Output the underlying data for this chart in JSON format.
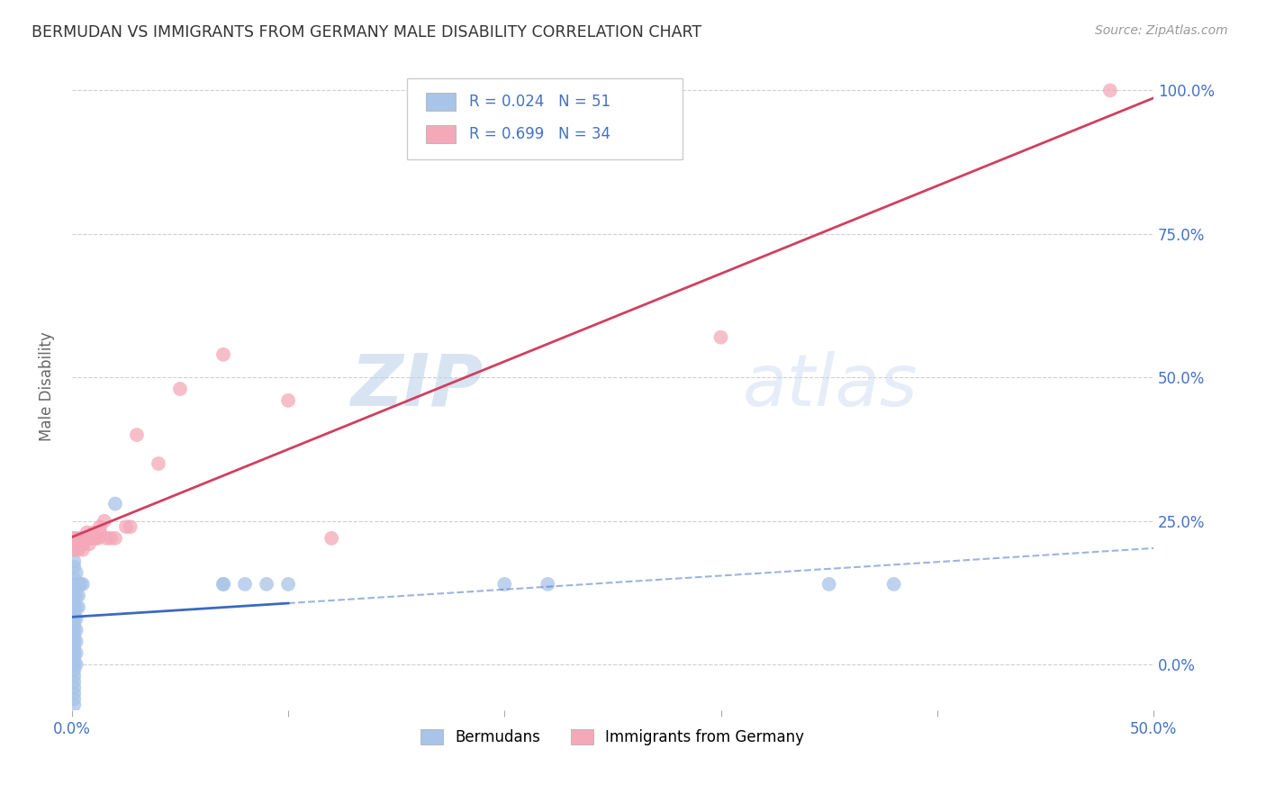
{
  "title": "BERMUDAN VS IMMIGRANTS FROM GERMANY MALE DISABILITY CORRELATION CHART",
  "source": "Source: ZipAtlas.com",
  "ylabel": "Male Disability",
  "watermark": "ZIPatlas",
  "blue_color": "#a8c4e8",
  "pink_color": "#f4a8b8",
  "blue_line_color": "#3a6abf",
  "pink_line_color": "#d04060",
  "blue_scatter": [
    [
      0.001,
      0.18
    ],
    [
      0.001,
      0.22
    ],
    [
      0.001,
      0.2
    ],
    [
      0.001,
      0.17
    ],
    [
      0.001,
      0.15
    ],
    [
      0.001,
      0.14
    ],
    [
      0.001,
      0.13
    ],
    [
      0.001,
      0.12
    ],
    [
      0.001,
      0.1
    ],
    [
      0.001,
      0.09
    ],
    [
      0.001,
      0.08
    ],
    [
      0.001,
      0.07
    ],
    [
      0.001,
      0.06
    ],
    [
      0.001,
      0.05
    ],
    [
      0.001,
      0.04
    ],
    [
      0.001,
      0.03
    ],
    [
      0.001,
      0.02
    ],
    [
      0.001,
      0.01
    ],
    [
      0.001,
      0.0
    ],
    [
      0.001,
      -0.01
    ],
    [
      0.001,
      -0.02
    ],
    [
      0.001,
      -0.03
    ],
    [
      0.001,
      -0.04
    ],
    [
      0.001,
      -0.05
    ],
    [
      0.001,
      -0.06
    ],
    [
      0.001,
      -0.07
    ],
    [
      0.002,
      0.16
    ],
    [
      0.002,
      0.14
    ],
    [
      0.002,
      0.12
    ],
    [
      0.002,
      0.1
    ],
    [
      0.002,
      0.08
    ],
    [
      0.002,
      0.06
    ],
    [
      0.002,
      0.04
    ],
    [
      0.002,
      0.02
    ],
    [
      0.002,
      0.0
    ],
    [
      0.003,
      0.14
    ],
    [
      0.003,
      0.12
    ],
    [
      0.003,
      0.1
    ],
    [
      0.003,
      0.14
    ],
    [
      0.004,
      0.14
    ],
    [
      0.005,
      0.14
    ],
    [
      0.02,
      0.28
    ],
    [
      0.07,
      0.14
    ],
    [
      0.07,
      0.14
    ],
    [
      0.08,
      0.14
    ],
    [
      0.09,
      0.14
    ],
    [
      0.1,
      0.14
    ],
    [
      0.2,
      0.14
    ],
    [
      0.22,
      0.14
    ],
    [
      0.35,
      0.14
    ],
    [
      0.38,
      0.14
    ]
  ],
  "pink_scatter": [
    [
      0.001,
      0.2
    ],
    [
      0.001,
      0.22
    ],
    [
      0.002,
      0.21
    ],
    [
      0.003,
      0.22
    ],
    [
      0.003,
      0.2
    ],
    [
      0.004,
      0.21
    ],
    [
      0.004,
      0.22
    ],
    [
      0.005,
      0.2
    ],
    [
      0.005,
      0.21
    ],
    [
      0.006,
      0.22
    ],
    [
      0.007,
      0.23
    ],
    [
      0.008,
      0.22
    ],
    [
      0.008,
      0.21
    ],
    [
      0.009,
      0.22
    ],
    [
      0.01,
      0.22
    ],
    [
      0.01,
      0.23
    ],
    [
      0.011,
      0.22
    ],
    [
      0.012,
      0.22
    ],
    [
      0.013,
      0.24
    ],
    [
      0.013,
      0.23
    ],
    [
      0.015,
      0.25
    ],
    [
      0.016,
      0.22
    ],
    [
      0.018,
      0.22
    ],
    [
      0.02,
      0.22
    ],
    [
      0.025,
      0.24
    ],
    [
      0.027,
      0.24
    ],
    [
      0.03,
      0.4
    ],
    [
      0.04,
      0.35
    ],
    [
      0.05,
      0.48
    ],
    [
      0.07,
      0.54
    ],
    [
      0.1,
      0.46
    ],
    [
      0.12,
      0.22
    ],
    [
      0.3,
      0.57
    ],
    [
      0.48,
      1.0
    ]
  ],
  "xlim": [
    0.0,
    0.5
  ],
  "ylim": [
    -0.08,
    1.05
  ],
  "y_tick_vals": [
    0.0,
    0.25,
    0.5,
    0.75,
    1.0
  ],
  "y_tick_labels": [
    "0.0%",
    "25.0%",
    "50.0%",
    "75.0%",
    "100.0%"
  ],
  "x_tick_vals": [
    0.0,
    0.1,
    0.2,
    0.3,
    0.4,
    0.5
  ],
  "x_tick_labels_show": {
    "0.0": "0.0%",
    "0.5": "50.0%"
  }
}
